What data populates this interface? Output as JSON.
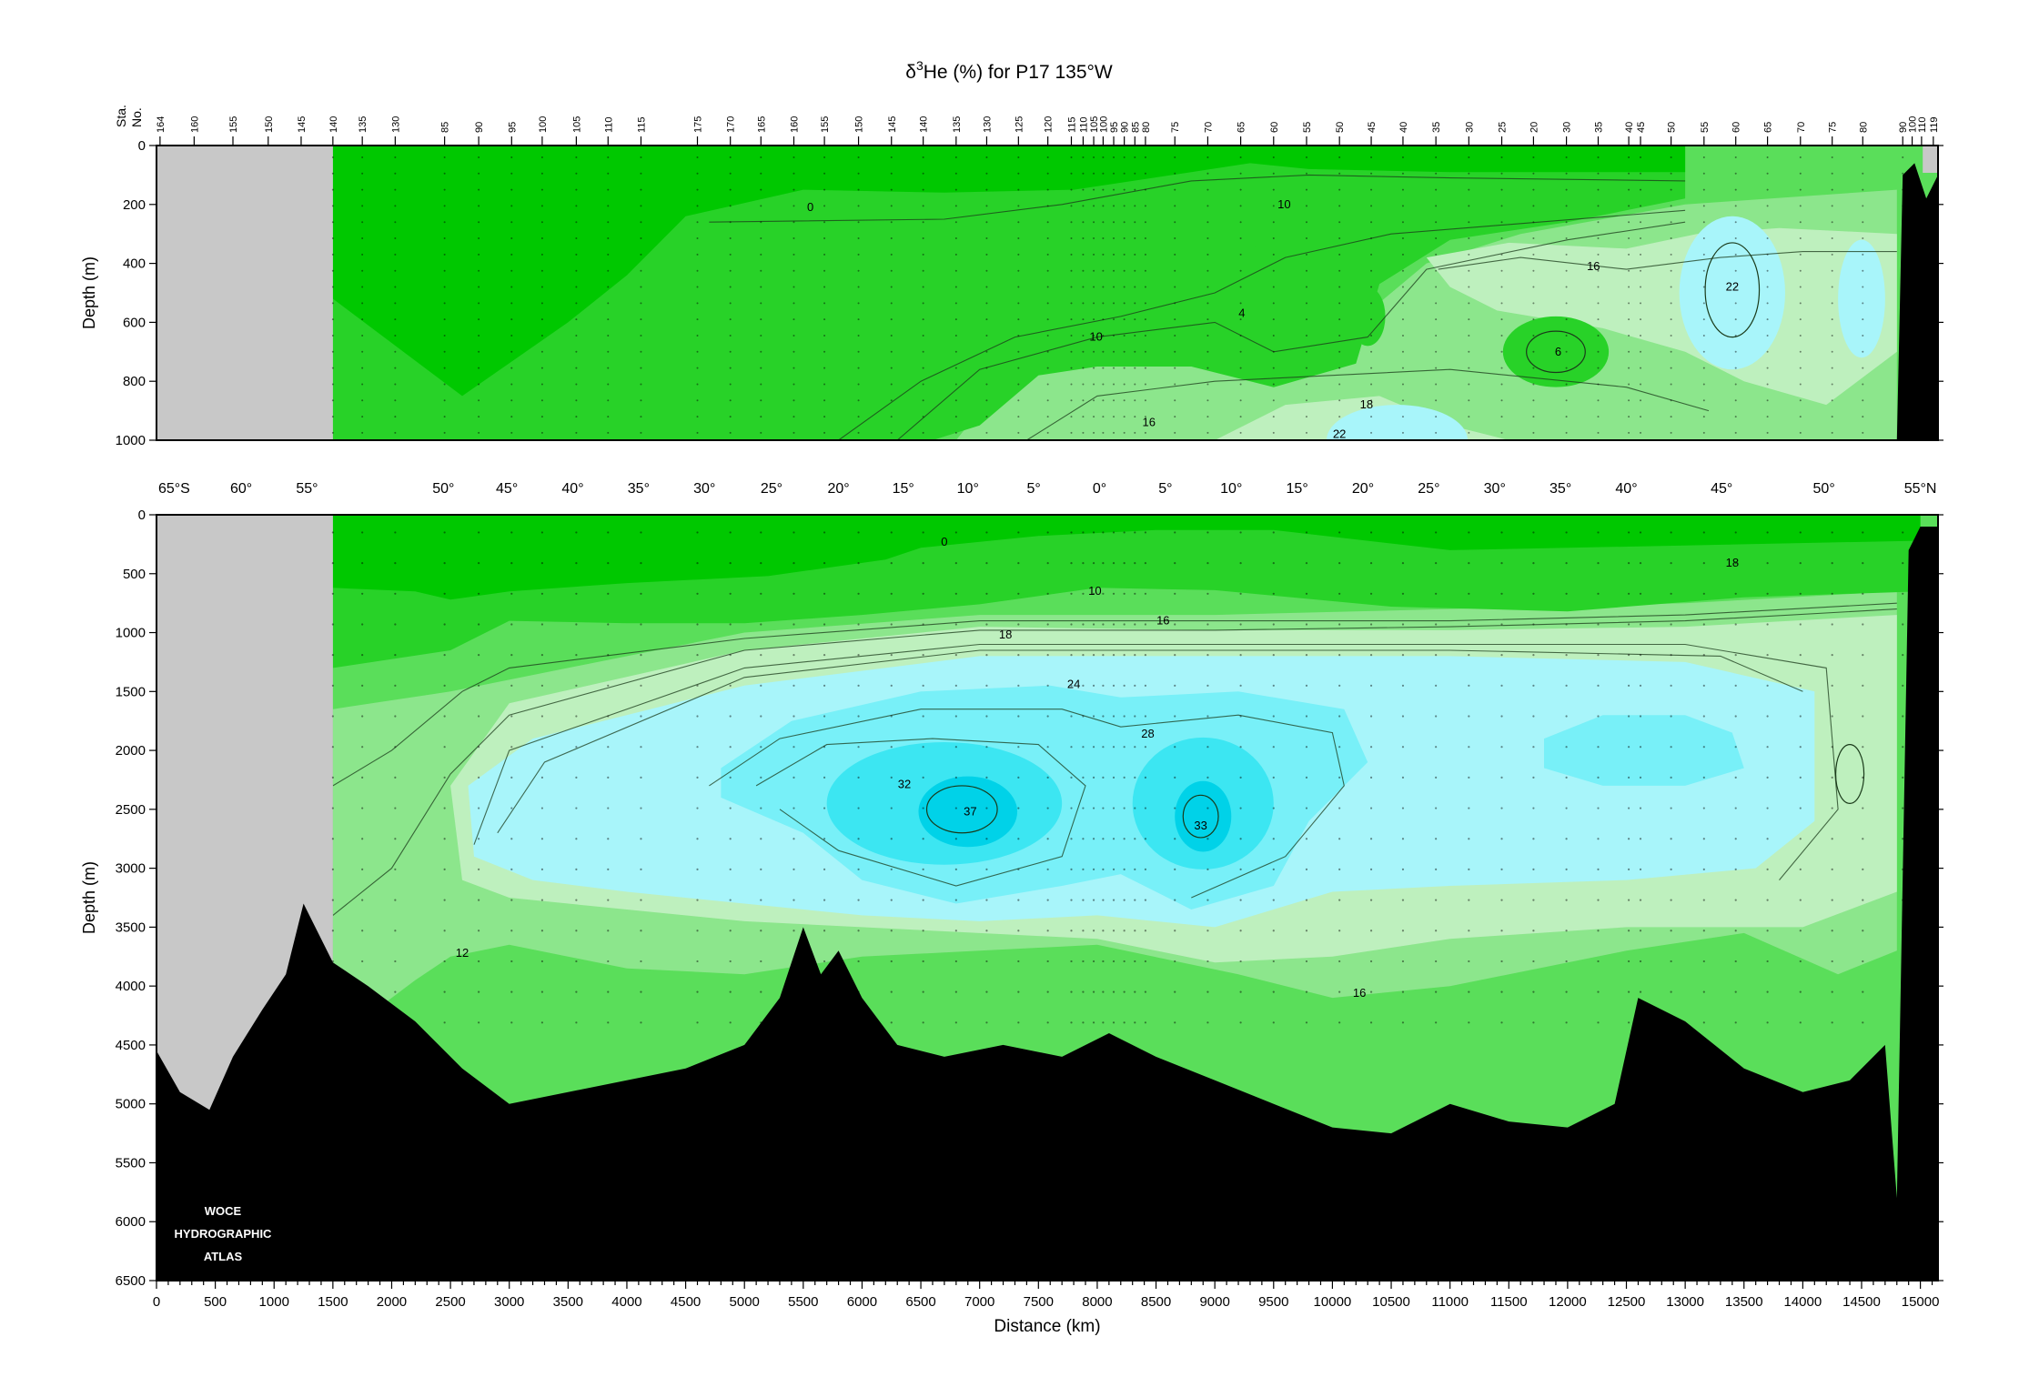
{
  "chart_data": {
    "type": "heatmap",
    "title": "δ³He (%) for P17 135°W",
    "title_parts": {
      "delta": "δ",
      "sup": "3",
      "rest": "He (%) for P17 135°W"
    },
    "xlabel": "Distance (km)",
    "ylabel": "Depth (m)",
    "xlim": [
      0,
      15150
    ],
    "x_ticks": [
      0,
      500,
      1000,
      1500,
      2000,
      2500,
      3000,
      3500,
      4000,
      4500,
      5000,
      5500,
      6000,
      6500,
      7000,
      7500,
      8000,
      8500,
      9000,
      9500,
      10000,
      10500,
      11000,
      11500,
      12000,
      12500,
      13000,
      13500,
      14000,
      14500,
      15000
    ],
    "x_tick_labels": [
      "0",
      "500",
      "1000",
      "1500",
      "2000",
      "2500",
      "3000",
      "3500",
      "4000",
      "4500",
      "5000",
      "5500",
      "6000",
      "6500",
      "7000",
      "7500",
      "8000",
      "8500",
      "9000",
      "9500",
      "10000",
      "10500",
      "11000",
      "11500",
      "12000",
      "12500",
      "13000",
      "13500",
      "14000",
      "14500",
      "15000"
    ],
    "panels": [
      {
        "name": "upper",
        "ylim": [
          0,
          1000
        ],
        "y_ticks": [
          0,
          200,
          400,
          600,
          800,
          1000
        ],
        "y_tick_labels": [
          "0",
          "200",
          "400",
          "600",
          "800",
          "1000"
        ]
      },
      {
        "name": "lower",
        "ylim": [
          0,
          6500
        ],
        "y_ticks": [
          0,
          500,
          1000,
          1500,
          2000,
          2500,
          3000,
          3500,
          4000,
          4500,
          5000,
          5500,
          6000,
          6500
        ],
        "y_tick_labels": [
          "0",
          "500",
          "1000",
          "1500",
          "2000",
          "2500",
          "3000",
          "3500",
          "4000",
          "4500",
          "5000",
          "5500",
          "6000",
          "6500"
        ]
      }
    ],
    "station_axis": {
      "label_line1": "Sta.",
      "label_line2": "No.",
      "stations": [
        {
          "x": 30,
          "label": "164"
        },
        {
          "x": 320,
          "label": "160"
        },
        {
          "x": 650,
          "label": "155"
        },
        {
          "x": 950,
          "label": "150"
        },
        {
          "x": 1230,
          "label": "145"
        },
        {
          "x": 1500,
          "label": "140"
        },
        {
          "x": 1750,
          "label": "135"
        },
        {
          "x": 2030,
          "label": "130"
        },
        {
          "x": 2450,
          "label": "85"
        },
        {
          "x": 2740,
          "label": "90"
        },
        {
          "x": 3020,
          "label": "95"
        },
        {
          "x": 3280,
          "label": "100"
        },
        {
          "x": 3570,
          "label": "105"
        },
        {
          "x": 3840,
          "label": "110"
        },
        {
          "x": 4120,
          "label": "115"
        },
        {
          "x": 4600,
          "label": "175"
        },
        {
          "x": 4880,
          "label": "170"
        },
        {
          "x": 5140,
          "label": "165"
        },
        {
          "x": 5420,
          "label": "160"
        },
        {
          "x": 5680,
          "label": "155"
        },
        {
          "x": 5970,
          "label": "150"
        },
        {
          "x": 6250,
          "label": "145"
        },
        {
          "x": 6520,
          "label": "140"
        },
        {
          "x": 6800,
          "label": "135"
        },
        {
          "x": 7060,
          "label": "130"
        },
        {
          "x": 7330,
          "label": "125"
        },
        {
          "x": 7580,
          "label": "120"
        },
        {
          "x": 7780,
          "label": "115"
        },
        {
          "x": 7880,
          "label": "110"
        },
        {
          "x": 7970,
          "label": "105"
        },
        {
          "x": 8050,
          "label": "100"
        },
        {
          "x": 8140,
          "label": "95"
        },
        {
          "x": 8230,
          "label": "90"
        },
        {
          "x": 8320,
          "label": "85"
        },
        {
          "x": 8410,
          "label": "80"
        },
        {
          "x": 8660,
          "label": "75"
        },
        {
          "x": 8940,
          "label": "70"
        },
        {
          "x": 9220,
          "label": "65"
        },
        {
          "x": 9500,
          "label": "60"
        },
        {
          "x": 9780,
          "label": "55"
        },
        {
          "x": 10060,
          "label": "50"
        },
        {
          "x": 10330,
          "label": "45"
        },
        {
          "x": 10600,
          "label": "40"
        },
        {
          "x": 10880,
          "label": "35"
        },
        {
          "x": 11160,
          "label": "30"
        },
        {
          "x": 11440,
          "label": "25"
        },
        {
          "x": 11710,
          "label": "20"
        },
        {
          "x": 11990,
          "label": "30"
        },
        {
          "x": 12260,
          "label": "35"
        },
        {
          "x": 12520,
          "label": "40"
        },
        {
          "x": 12620,
          "label": "45"
        },
        {
          "x": 12880,
          "label": "50"
        },
        {
          "x": 13160,
          "label": "55"
        },
        {
          "x": 13430,
          "label": "60"
        },
        {
          "x": 13700,
          "label": "65"
        },
        {
          "x": 13980,
          "label": "70"
        },
        {
          "x": 14250,
          "label": "75"
        },
        {
          "x": 14510,
          "label": "80"
        },
        {
          "x": 14850,
          "label": "90"
        },
        {
          "x": 14930,
          "label": "100"
        },
        {
          "x": 15010,
          "label": "110"
        },
        {
          "x": 15110,
          "label": "119"
        }
      ]
    },
    "latitude_labels": [
      {
        "x": 150,
        "label": "65°S"
      },
      {
        "x": 720,
        "label": "60°"
      },
      {
        "x": 1280,
        "label": "55°"
      },
      {
        "x": 2440,
        "label": "50°"
      },
      {
        "x": 2980,
        "label": "45°"
      },
      {
        "x": 3540,
        "label": "40°"
      },
      {
        "x": 4100,
        "label": "35°"
      },
      {
        "x": 4660,
        "label": "30°"
      },
      {
        "x": 5230,
        "label": "25°"
      },
      {
        "x": 5800,
        "label": "20°"
      },
      {
        "x": 6350,
        "label": "15°"
      },
      {
        "x": 6900,
        "label": "10°"
      },
      {
        "x": 7460,
        "label": "5°"
      },
      {
        "x": 8020,
        "label": "0°"
      },
      {
        "x": 8580,
        "label": "5°"
      },
      {
        "x": 9140,
        "label": "10°"
      },
      {
        "x": 9700,
        "label": "15°"
      },
      {
        "x": 10260,
        "label": "20°"
      },
      {
        "x": 10820,
        "label": "25°"
      },
      {
        "x": 11380,
        "label": "30°"
      },
      {
        "x": 11940,
        "label": "35°"
      },
      {
        "x": 12500,
        "label": "40°"
      },
      {
        "x": 13310,
        "label": "45°"
      },
      {
        "x": 14180,
        "label": "50°"
      },
      {
        "x": 15000,
        "label": "55°N"
      }
    ],
    "colors": {
      "no_data_gray": "#c8c8c8",
      "bathymetry": "#000000",
      "band_0": "#00c800",
      "band_4": "#28d228",
      "band_10": "#5ade5a",
      "band_16": "#8ce68c",
      "band_18": "#bef0be",
      "band_24": "#a8f5fa",
      "band_28": "#78f0f8",
      "band_32": "#3ce6f2",
      "band_36": "#00d2e8"
    },
    "contour_labels": [
      {
        "panel": "upper",
        "x": 5560,
        "depth": 210,
        "label": "0"
      },
      {
        "panel": "upper",
        "x": 9590,
        "depth": 200,
        "label": "10"
      },
      {
        "panel": "upper",
        "x": 12220,
        "depth": 410,
        "label": "16"
      },
      {
        "panel": "upper",
        "x": 13400,
        "depth": 480,
        "label": "22"
      },
      {
        "panel": "upper",
        "x": 9230,
        "depth": 570,
        "label": "4"
      },
      {
        "panel": "upper",
        "x": 7990,
        "depth": 650,
        "label": "10"
      },
      {
        "panel": "upper",
        "x": 11920,
        "depth": 700,
        "label": "6"
      },
      {
        "panel": "upper",
        "x": 10290,
        "depth": 880,
        "label": "18"
      },
      {
        "panel": "upper",
        "x": 8440,
        "depth": 940,
        "label": "16"
      },
      {
        "panel": "upper",
        "x": 10060,
        "depth": 980,
        "label": "22"
      },
      {
        "panel": "lower",
        "x": 6700,
        "depth": 230,
        "label": "0"
      },
      {
        "panel": "lower",
        "x": 13400,
        "depth": 410,
        "label": "18"
      },
      {
        "panel": "lower",
        "x": 7980,
        "depth": 650,
        "label": "10"
      },
      {
        "panel": "lower",
        "x": 8560,
        "depth": 900,
        "label": "16"
      },
      {
        "panel": "lower",
        "x": 7220,
        "depth": 1020,
        "label": "18"
      },
      {
        "panel": "lower",
        "x": 7800,
        "depth": 1440,
        "label": "24"
      },
      {
        "panel": "lower",
        "x": 8430,
        "depth": 1860,
        "label": "28"
      },
      {
        "panel": "lower",
        "x": 6360,
        "depth": 2290,
        "label": "32"
      },
      {
        "panel": "lower",
        "x": 6920,
        "depth": 2520,
        "label": "37"
      },
      {
        "panel": "lower",
        "x": 8880,
        "depth": 2640,
        "label": "33"
      },
      {
        "panel": "lower",
        "x": 2600,
        "depth": 3720,
        "label": "12"
      },
      {
        "panel": "lower",
        "x": 10230,
        "depth": 4060,
        "label": "16"
      }
    ],
    "grid": false,
    "legend": "none"
  },
  "watermark": {
    "line1": "WOCE",
    "line2": "HYDROGRAPHIC",
    "line3": "ATLAS"
  }
}
